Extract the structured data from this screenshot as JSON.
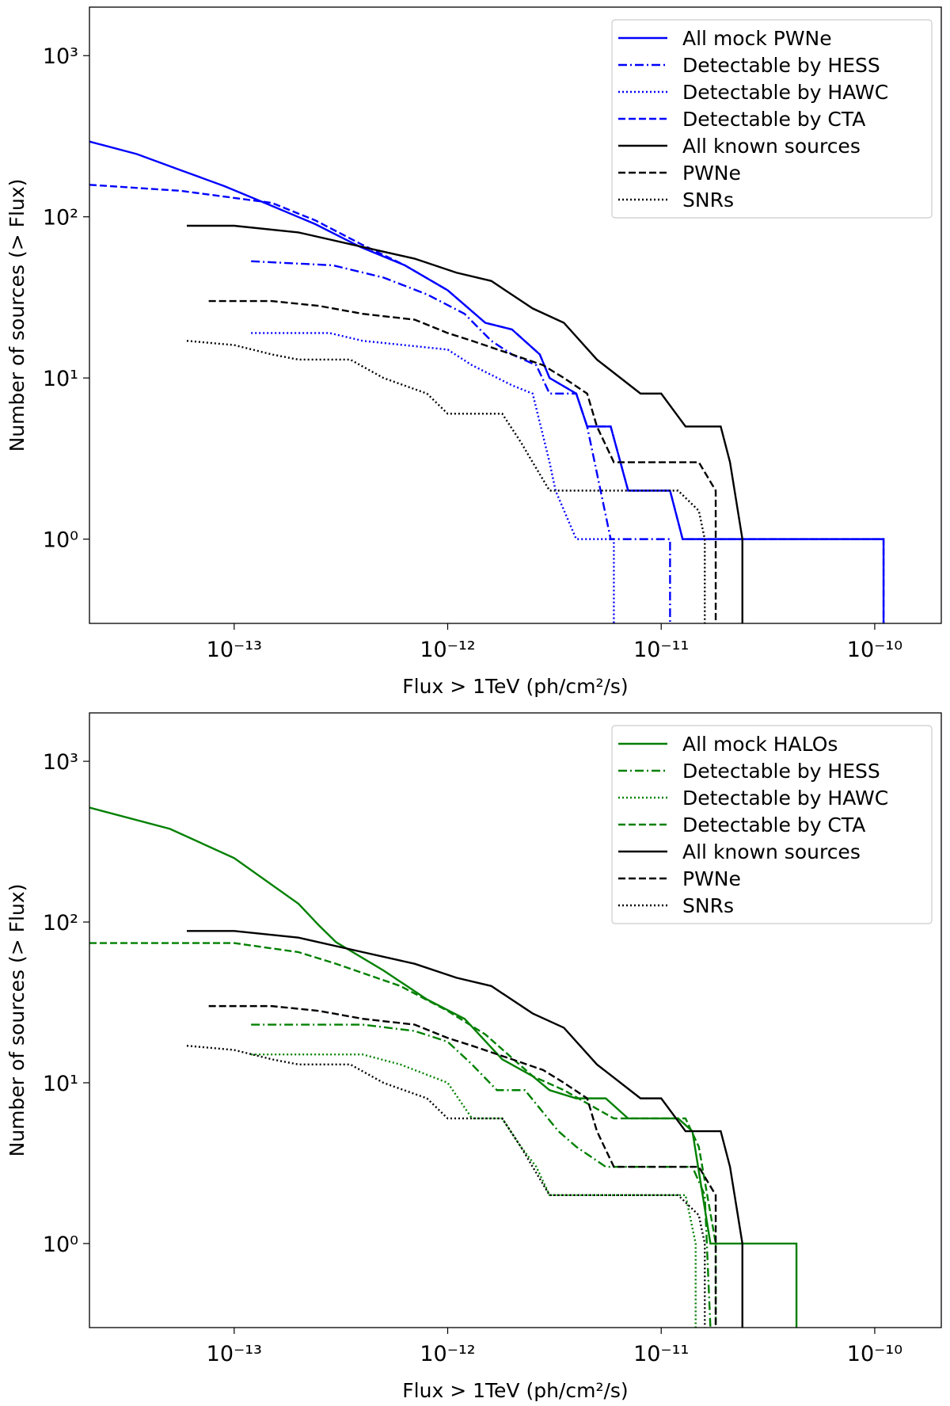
{
  "chart_data": [
    {
      "type": "line",
      "xlabel": "Flux > 1TeV (ph/cm²/s)",
      "ylabel": "Number of sources (> Flux)",
      "xscale": "log",
      "yscale": "log",
      "legend": "upper right",
      "xlim": [
        2.1e-14,
        2.05e-10
      ],
      "ylim": [
        0.3,
        2000
      ],
      "xticks": [
        {
          "value": 1e-13,
          "label": "10⁻¹³"
        },
        {
          "value": 1e-12,
          "label": "10⁻¹²"
        },
        {
          "value": 1e-11,
          "label": "10⁻¹¹"
        },
        {
          "value": 1e-10,
          "label": "10⁻¹⁰"
        }
      ],
      "yticks": [
        {
          "value": 1,
          "label": "10⁰"
        },
        {
          "value": 10,
          "label": "10¹"
        },
        {
          "value": 100,
          "label": "10²"
        },
        {
          "value": 1000,
          "label": "10³"
        }
      ],
      "series": [
        {
          "name": "All mock PWNe",
          "color": "#0000ff",
          "dash": "solid",
          "x": [
            2.1e-14,
            3.5e-14,
            5.6e-14,
            9e-14,
            1.5e-13,
            2.4e-13,
            3.9e-13,
            6.3e-13,
            1e-12,
            1.5e-12,
            2e-12,
            2.7e-12,
            3e-12,
            4e-12,
            4.5e-12,
            5.8e-12,
            7e-12,
            1.1e-11,
            1.26e-11,
            1.1e-10,
            1.1e-10
          ],
          "values": [
            293,
            245,
            195,
            155,
            117,
            90,
            65,
            50,
            35,
            22,
            20,
            14,
            10,
            8,
            5,
            5,
            2,
            2,
            1,
            1,
            0.3
          ]
        },
        {
          "name": "Detectable by HESS",
          "color": "#0000ff",
          "dash": "dashdot",
          "x": [
            1.2e-13,
            2.9e-13,
            5e-13,
            8e-13,
            1.2e-12,
            1.6e-12,
            2e-12,
            2.6e-12,
            3e-12,
            4e-12,
            4.5e-12,
            5.2e-12,
            5.8e-12,
            1.1e-11,
            1.1e-11
          ],
          "values": [
            53,
            50,
            42,
            33,
            25,
            17,
            14,
            12,
            8,
            8,
            5,
            2,
            1,
            1,
            0.3
          ]
        },
        {
          "name": "Detectable by HAWC",
          "color": "#0000ff",
          "dash": "dotted",
          "x": [
            1.2e-13,
            2.8e-13,
            4e-13,
            1e-12,
            1.3e-12,
            2e-12,
            2.5e-12,
            3e-12,
            3.2e-12,
            4e-12,
            6e-12,
            6e-12
          ],
          "values": [
            19,
            19,
            17,
            15,
            12,
            9,
            8,
            3,
            2,
            1,
            1,
            0.3
          ]
        },
        {
          "name": "Detectable by CTA",
          "color": "#0000ff",
          "dash": "dashed",
          "x": [
            2.1e-14,
            5.6e-14,
            1.5e-13,
            2.4e-13,
            3.9e-13,
            6.3e-13,
            1e-12,
            1.5e-12,
            2e-12,
            2.7e-12,
            3e-12,
            4e-12,
            4.5e-12,
            5.8e-12,
            7e-12,
            1.1e-11,
            1.26e-11,
            1.1e-10,
            1.1e-10
          ],
          "values": [
            158,
            145,
            122,
            95,
            68,
            50,
            35,
            22,
            20,
            14,
            10,
            8,
            5,
            5,
            2,
            2,
            1,
            1,
            0.3
          ]
        },
        {
          "name": "All known sources",
          "color": "#000000",
          "dash": "solid",
          "x": [
            6e-14,
            1e-13,
            2e-13,
            4e-13,
            7e-13,
            1.1e-12,
            1.6e-12,
            2.5e-12,
            3.5e-12,
            5e-12,
            8e-12,
            1e-11,
            1.3e-11,
            1.9e-11,
            2.1e-11,
            2.4e-11,
            2.4e-11
          ],
          "values": [
            88,
            88,
            80,
            65,
            55,
            45,
            40,
            27,
            22,
            13,
            8,
            8,
            5,
            5,
            3,
            1,
            0.3
          ]
        },
        {
          "name": "PWNe",
          "color": "#000000",
          "dash": "dashed",
          "x": [
            7.6e-14,
            1.5e-13,
            2.5e-13,
            4e-13,
            7e-13,
            1e-12,
            1.3e-12,
            2e-12,
            2.8e-12,
            3.5e-12,
            4.5e-12,
            5e-12,
            6e-12,
            1.5e-11,
            1.8e-11,
            1.8e-11
          ],
          "values": [
            30,
            30,
            28,
            25,
            23,
            19,
            17,
            14,
            12,
            10,
            8,
            5,
            3,
            3,
            2,
            0.3
          ]
        },
        {
          "name": "SNRs",
          "color": "#000000",
          "dash": "dotted",
          "x": [
            6e-14,
            1e-13,
            1.5e-13,
            2e-13,
            3.5e-13,
            5e-13,
            8e-13,
            1e-12,
            1.8e-12,
            2.2e-12,
            2.5e-12,
            3e-12,
            1.2e-11,
            1.5e-11,
            1.6e-11,
            1.6e-11
          ],
          "values": [
            17,
            16,
            14,
            13,
            13,
            10,
            8,
            6,
            6,
            4,
            3,
            2,
            2,
            1.5,
            1,
            0.3
          ]
        }
      ]
    },
    {
      "type": "line",
      "xlabel": "Flux > 1TeV (ph/cm²/s)",
      "ylabel": "Number of sources (> Flux)",
      "xscale": "log",
      "yscale": "log",
      "legend": "upper right",
      "xlim": [
        2.1e-14,
        2.05e-10
      ],
      "ylim": [
        0.3,
        2000
      ],
      "xticks": [
        {
          "value": 1e-13,
          "label": "10⁻¹³"
        },
        {
          "value": 1e-12,
          "label": "10⁻¹²"
        },
        {
          "value": 1e-11,
          "label": "10⁻¹¹"
        },
        {
          "value": 1e-10,
          "label": "10⁻¹⁰"
        }
      ],
      "yticks": [
        {
          "value": 1,
          "label": "10⁰"
        },
        {
          "value": 10,
          "label": "10¹"
        },
        {
          "value": 100,
          "label": "10²"
        },
        {
          "value": 1000,
          "label": "10³"
        }
      ],
      "series": [
        {
          "name": "All mock HALOs",
          "color": "#008000",
          "dash": "solid",
          "x": [
            2.1e-14,
            5e-14,
            1e-13,
            2e-13,
            2.5e-13,
            3e-13,
            5e-13,
            8e-13,
            1.2e-12,
            1.8e-12,
            2.5e-12,
            3e-12,
            4e-12,
            5.5e-12,
            7e-12,
            1.2e-11,
            1.4e-11,
            1.7e-11,
            4.3e-11,
            4.3e-11
          ],
          "values": [
            515,
            380,
            250,
            130,
            95,
            75,
            50,
            33,
            25,
            14,
            11,
            9,
            8,
            8,
            6,
            6,
            5,
            1,
            1,
            0.3
          ]
        },
        {
          "name": "Detectable by HESS",
          "color": "#008000",
          "dash": "dashdot",
          "x": [
            1.2e-13,
            4e-13,
            7e-13,
            1e-12,
            1.3e-12,
            1.7e-12,
            2.3e-12,
            3.3e-12,
            4e-12,
            5.5e-12,
            1.4e-11,
            1.6e-11,
            1.7e-11
          ],
          "values": [
            23,
            23,
            21,
            18,
            13,
            9,
            9,
            5,
            4,
            3,
            3,
            2,
            0.3
          ]
        },
        {
          "name": "Detectable by HAWC",
          "color": "#008000",
          "dash": "dotted",
          "x": [
            1.2e-13,
            4e-13,
            6e-13,
            1e-12,
            1.3e-12,
            1.8e-12,
            2.2e-12,
            2.6e-12,
            3e-12,
            1.3e-11,
            1.45e-11,
            1.45e-11
          ],
          "values": [
            15,
            15,
            13,
            10,
            6,
            6,
            4,
            3,
            2,
            2,
            1,
            0.3
          ]
        },
        {
          "name": "Detectable by CTA",
          "color": "#008000",
          "dash": "dashed",
          "x": [
            2.1e-14,
            1e-13,
            2e-13,
            3e-13,
            6e-13,
            1e-12,
            1.5e-12,
            2.5e-12,
            3.5e-12,
            6e-12,
            1.3e-11,
            1.5e-11,
            1.8e-11,
            1.8e-11
          ],
          "values": [
            74,
            74,
            65,
            55,
            40,
            28,
            20,
            11,
            9,
            6,
            6,
            4,
            1,
            0.3
          ]
        },
        {
          "name": "All known sources",
          "color": "#000000",
          "dash": "solid",
          "x": [
            6e-14,
            1e-13,
            2e-13,
            4e-13,
            7e-13,
            1.1e-12,
            1.6e-12,
            2.5e-12,
            3.5e-12,
            5e-12,
            8e-12,
            1e-11,
            1.3e-11,
            1.9e-11,
            2.1e-11,
            2.4e-11,
            2.4e-11
          ],
          "values": [
            88,
            88,
            80,
            65,
            55,
            45,
            40,
            27,
            22,
            13,
            8,
            8,
            5,
            5,
            3,
            1,
            0.3
          ]
        },
        {
          "name": "PWNe",
          "color": "#000000",
          "dash": "dashed",
          "x": [
            7.6e-14,
            1.5e-13,
            2.5e-13,
            4e-13,
            7e-13,
            1e-12,
            1.3e-12,
            2e-12,
            2.8e-12,
            3.5e-12,
            4.5e-12,
            5e-12,
            6e-12,
            1.5e-11,
            1.8e-11,
            1.8e-11
          ],
          "values": [
            30,
            30,
            28,
            25,
            23,
            19,
            17,
            14,
            12,
            10,
            8,
            5,
            3,
            3,
            2,
            0.3
          ]
        },
        {
          "name": "SNRs",
          "color": "#000000",
          "dash": "dotted",
          "x": [
            6e-14,
            1e-13,
            1.5e-13,
            2e-13,
            3.5e-13,
            5e-13,
            8e-13,
            1e-12,
            1.8e-12,
            2.2e-12,
            2.5e-12,
            3e-12,
            1.2e-11,
            1.5e-11,
            1.6e-11,
            1.6e-11
          ],
          "values": [
            17,
            16,
            14,
            13,
            13,
            10,
            8,
            6,
            6,
            4,
            3,
            2,
            2,
            1.5,
            1,
            0.3
          ]
        }
      ]
    }
  ]
}
